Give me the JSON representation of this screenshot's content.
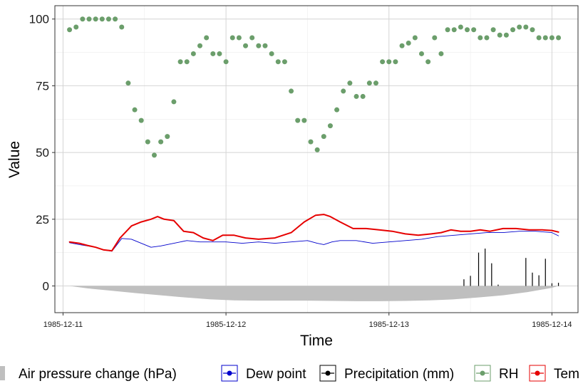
{
  "chart_data": {
    "type": "line",
    "title": "",
    "xlabel": "Time",
    "ylabel": "Value",
    "xlim": [
      -0.05,
      3.16
    ],
    "ylim": [
      -10,
      105
    ],
    "x_ticks": [
      {
        "value": 0,
        "label": "1985-12-11"
      },
      {
        "value": 1,
        "label": "1985-12-12"
      },
      {
        "value": 2,
        "label": "1985-12-13"
      },
      {
        "value": 3,
        "label": "1985-12-14"
      }
    ],
    "y_ticks": [
      {
        "value": 0,
        "label": "0"
      },
      {
        "value": 25,
        "label": "25"
      },
      {
        "value": 50,
        "label": "50"
      },
      {
        "value": 75,
        "label": "75"
      },
      {
        "value": 100,
        "label": "100"
      }
    ],
    "grid": true,
    "legend_position": "bottom",
    "colors": {
      "pressure": "#bfbfbf",
      "dew": "#0000cc",
      "precip": "#000000",
      "rh": "#6b9e6b",
      "tem": "#e60000"
    },
    "series": [
      {
        "name": "Air pressure change (hPa)",
        "kind": "area",
        "x": [
          0.04,
          0.15,
          0.3,
          0.45,
          0.6,
          0.75,
          0.9,
          1.05,
          1.2,
          1.35,
          1.5,
          1.65,
          1.8,
          1.95,
          2.1,
          2.25,
          2.4,
          2.55,
          2.7,
          2.85,
          3.0,
          3.04
        ],
        "values": [
          0,
          -0.9,
          -1.8,
          -2.7,
          -3.5,
          -4.3,
          -5.0,
          -5.4,
          -5.5,
          -5.5,
          -5.5,
          -5.6,
          -5.7,
          -5.7,
          -5.6,
          -5.4,
          -5.0,
          -4.3,
          -3.5,
          -2.3,
          -0.7,
          0
        ]
      },
      {
        "name": "Dew point",
        "kind": "line",
        "x": [
          0.04,
          0.1,
          0.15,
          0.2,
          0.25,
          0.3,
          0.36,
          0.42,
          0.48,
          0.54,
          0.6,
          0.68,
          0.76,
          0.84,
          0.92,
          1.0,
          1.1,
          1.2,
          1.3,
          1.4,
          1.5,
          1.56,
          1.6,
          1.65,
          1.7,
          1.8,
          1.9,
          2.0,
          2.1,
          2.2,
          2.3,
          2.4,
          2.5,
          2.6,
          2.7,
          2.8,
          2.9,
          3.0,
          3.04
        ],
        "values": [
          16.2,
          15.5,
          15.0,
          14.5,
          13.5,
          13.0,
          17.8,
          17.5,
          16.0,
          14.5,
          15.0,
          16.0,
          17.0,
          16.5,
          16.5,
          16.5,
          16.0,
          16.5,
          16.0,
          16.5,
          17.0,
          16.0,
          15.5,
          16.5,
          17.0,
          17.0,
          16.0,
          16.5,
          17.0,
          17.5,
          18.5,
          19.0,
          19.5,
          20.0,
          20.0,
          20.5,
          20.5,
          20.0,
          18.8
        ]
      },
      {
        "name": "Precipitation (mm)",
        "kind": "bar",
        "x": [
          2.46,
          2.5,
          2.55,
          2.59,
          2.63,
          2.67,
          2.84,
          2.88,
          2.92,
          2.96,
          3.0,
          3.04
        ],
        "values": [
          2.5,
          3.8,
          12.5,
          14.0,
          8.5,
          0.5,
          10.5,
          5.0,
          4.0,
          10.2,
          1.0,
          1.2
        ]
      },
      {
        "name": "RH",
        "kind": "scatter",
        "x": [
          0.04,
          0.08,
          0.12,
          0.16,
          0.2,
          0.24,
          0.28,
          0.32,
          0.36,
          0.4,
          0.44,
          0.48,
          0.52,
          0.56,
          0.6,
          0.64,
          0.68,
          0.72,
          0.76,
          0.8,
          0.84,
          0.88,
          0.92,
          0.96,
          1.0,
          1.04,
          1.08,
          1.12,
          1.16,
          1.2,
          1.24,
          1.28,
          1.32,
          1.36,
          1.4,
          1.44,
          1.48,
          1.52,
          1.56,
          1.6,
          1.64,
          1.68,
          1.72,
          1.76,
          1.8,
          1.84,
          1.88,
          1.92,
          1.96,
          2.0,
          2.04,
          2.08,
          2.12,
          2.16,
          2.2,
          2.24,
          2.28,
          2.32,
          2.36,
          2.4,
          2.44,
          2.48,
          2.52,
          2.56,
          2.6,
          2.64,
          2.68,
          2.72,
          2.76,
          2.8,
          2.84,
          2.88,
          2.92,
          2.96,
          3.0,
          3.04
        ],
        "values": [
          96,
          97,
          100,
          100,
          100,
          100,
          100,
          100,
          97,
          76,
          66,
          62,
          54,
          49,
          54,
          56,
          69,
          84,
          84,
          87,
          90,
          93,
          87,
          87,
          84,
          93,
          93,
          90,
          93,
          90,
          90,
          87,
          84,
          84,
          73,
          62,
          62,
          54,
          51,
          56,
          60,
          66,
          73,
          76,
          71,
          71,
          76,
          76,
          84,
          84,
          84,
          90,
          91,
          93,
          87,
          84,
          93,
          87,
          96,
          96,
          97,
          96,
          96,
          93,
          93,
          96,
          94,
          94,
          96,
          97,
          97,
          96,
          93,
          93,
          93,
          93
        ]
      },
      {
        "name": "Tem",
        "kind": "line",
        "x": [
          0.04,
          0.1,
          0.15,
          0.2,
          0.25,
          0.3,
          0.35,
          0.42,
          0.48,
          0.54,
          0.58,
          0.62,
          0.68,
          0.74,
          0.8,
          0.86,
          0.92,
          0.98,
          1.05,
          1.12,
          1.2,
          1.3,
          1.4,
          1.48,
          1.55,
          1.6,
          1.64,
          1.7,
          1.78,
          1.86,
          1.94,
          2.02,
          2.1,
          2.18,
          2.26,
          2.32,
          2.38,
          2.44,
          2.5,
          2.56,
          2.62,
          2.7,
          2.78,
          2.86,
          2.94,
          3.0,
          3.04
        ],
        "values": [
          16.5,
          16.0,
          15.2,
          14.5,
          13.5,
          13.2,
          18.0,
          22.5,
          24.0,
          25.0,
          26.0,
          25.0,
          24.5,
          20.5,
          20.0,
          18.0,
          17.0,
          19.0,
          19.0,
          18.0,
          17.5,
          18.0,
          20.0,
          24.0,
          26.5,
          26.8,
          26.0,
          24.0,
          21.5,
          21.5,
          21.0,
          20.5,
          19.5,
          19.0,
          19.5,
          20.0,
          21.0,
          20.5,
          20.5,
          21.0,
          20.5,
          21.5,
          21.5,
          21.0,
          21.0,
          20.8,
          20.2
        ]
      }
    ],
    "legend": [
      {
        "key": "pressure",
        "label": "Air pressure change (hPa)",
        "glyph": "square"
      },
      {
        "key": "dew",
        "label": "Dew point",
        "glyph": "line-point"
      },
      {
        "key": "precip",
        "label": "Precipitation (mm)",
        "glyph": "line-point"
      },
      {
        "key": "rh",
        "label": "RH",
        "glyph": "line-point"
      },
      {
        "key": "tem",
        "label": "Tem",
        "glyph": "line-point"
      }
    ]
  }
}
